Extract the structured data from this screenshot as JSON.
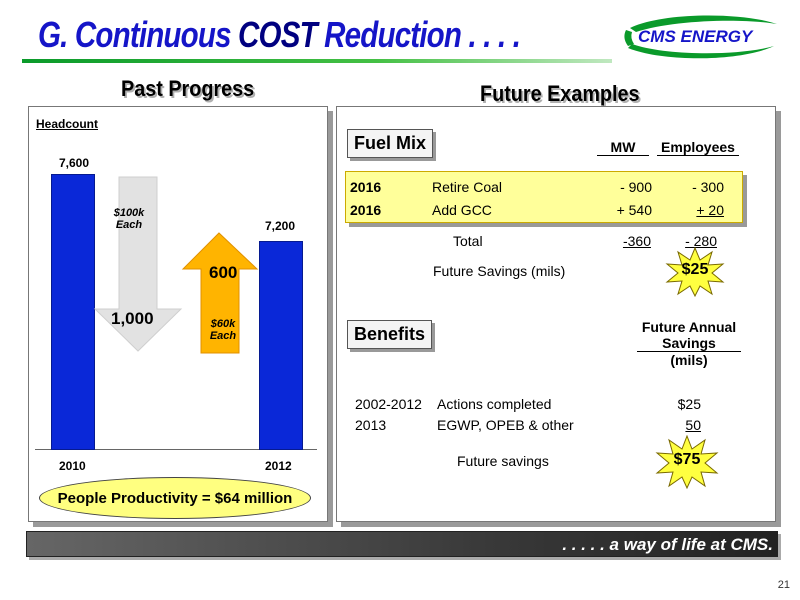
{
  "header": {
    "title_prefix": "G.  Continuous ",
    "title_cost": "COST",
    "title_suffix": " Reduction . . . .",
    "logo_text": "CMS ENERGY"
  },
  "past": {
    "heading": "Past Progress",
    "headcount_label": "Headcount",
    "bar_2010_value": "7,600",
    "bar_2012_value": "7,200",
    "year_2010": "2010",
    "year_2012": "2012",
    "down_arrow_value": "1,000",
    "down_arrow_note_1": "$100k",
    "down_arrow_note_2": "Each",
    "up_arrow_value": "600",
    "up_arrow_note_1": "$60k",
    "up_arrow_note_2": "Each",
    "productivity": "People Productivity = $64 million"
  },
  "future": {
    "heading": "Future Examples",
    "fuel_mix_badge": "Fuel Mix",
    "col_mw": "MW",
    "col_employees": "Employees",
    "rows": [
      {
        "year": "2016",
        "action": "Retire Coal",
        "mw": "- 900",
        "employees": "- 300"
      },
      {
        "year": "2016",
        "action": "Add GCC",
        "mw": "+ 540",
        "employees": "+ 20"
      }
    ],
    "total_label": "Total",
    "total_mw": "-360",
    "total_employees": "- 280",
    "future_savings_label": "Future Savings (mils)",
    "future_savings_value": "$25",
    "benefits_badge": "Benefits",
    "benefits_header_1": "Future Annual",
    "benefits_header_2": "Savings",
    "benefits_header_3": "(mils)",
    "benefit_rows": [
      {
        "period": "2002-2012",
        "desc": "Actions completed",
        "value": "$25"
      },
      {
        "period": "2013",
        "desc": "EGWP, OPEB & other",
        "value": "50"
      }
    ],
    "future_savings_2_label": "Future savings",
    "future_savings_2_value": "$75"
  },
  "footer": {
    "tagline": ". . . . . a way of life at CMS.",
    "page_number": "21"
  }
}
